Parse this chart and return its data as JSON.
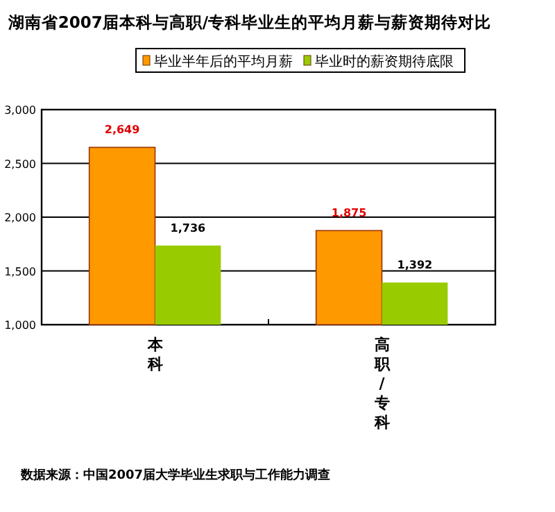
{
  "chart_data": {
    "type": "bar",
    "title": "湖南省2007届本科与高职/专科毕业生的平均月薪与薪资期待对比",
    "categories": [
      "本科",
      "高职/专科"
    ],
    "series": [
      {
        "name": "毕业半年后的平均月薪",
        "color": "#ff9900",
        "values": [
          2649,
          1875
        ],
        "value_labels": [
          "2,649",
          "1,875"
        ]
      },
      {
        "name": "毕业时的薪资期待底限",
        "color": "#99cc00",
        "values": [
          1736,
          1392
        ],
        "value_labels": [
          "1,736",
          "1,392"
        ]
      }
    ],
    "ylim": [
      1000,
      3000
    ],
    "yticks": [
      {
        "value": 1000,
        "label": "1,000"
      },
      {
        "value": 1500,
        "label": "1,500"
      },
      {
        "value": 2000,
        "label": "2,000"
      },
      {
        "value": 2500,
        "label": "2,500"
      },
      {
        "value": 3000,
        "label": "3,000"
      }
    ],
    "grid": "y",
    "legend": "top",
    "annotations": [
      "数据来源：中国2007届大学毕业生求职与工作能力调查"
    ]
  }
}
